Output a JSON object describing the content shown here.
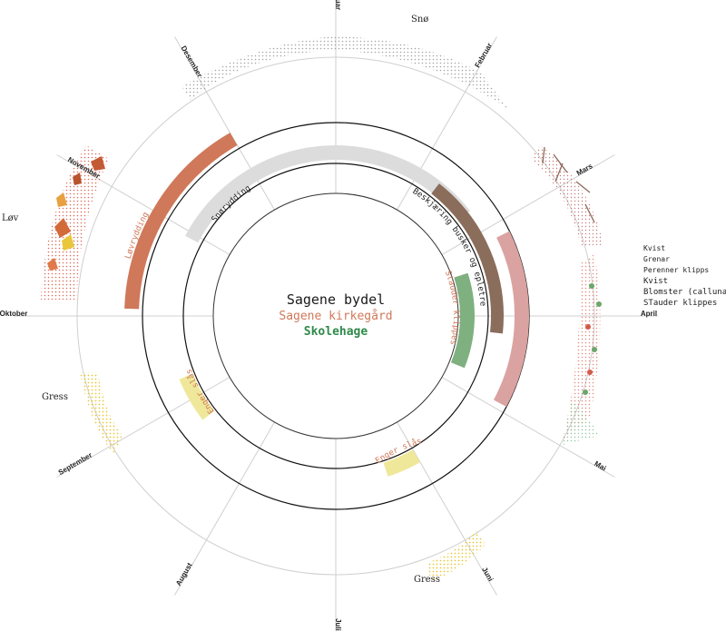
{
  "center": {
    "line1": "Sagene  bydel",
    "line2": "Sagene kirkegård",
    "line3": "Skolehage"
  },
  "colors": {
    "bydel": "#1a1a1a",
    "kirkegard": "#d0785a",
    "skolehage": "#2f8a4a",
    "snow_band": "#dcdcdc",
    "pruning": "#8b6d5c",
    "pink": "#dba2a2",
    "green_bar": "#7fb07f",
    "yellow": "#efe89a",
    "grid": "#cfcfcf"
  },
  "months": [
    "Januar",
    "Februar",
    "Mars",
    "April",
    "Mai",
    "Juni",
    "Juli",
    "August",
    "September",
    "Oktober",
    "November",
    "Desember"
  ],
  "outer_labels": {
    "snow": "Snø",
    "leaves": "Løv",
    "grass_left": "Gress",
    "grass_bottom": "Gress"
  },
  "legend_right": [
    "Kvist",
    "Grenar",
    "Perenner klipps",
    "Kvist",
    "Blomster (calluna)",
    "STauder klippes"
  ],
  "bands": {
    "snow": "Snørydding",
    "pruning": "Beskjæring busker og epletre",
    "perennials": "Stauder klippes",
    "leaves": "Løvrydding",
    "meadow_sep": "Enger slås",
    "meadow_jun": "Enger slås"
  }
}
